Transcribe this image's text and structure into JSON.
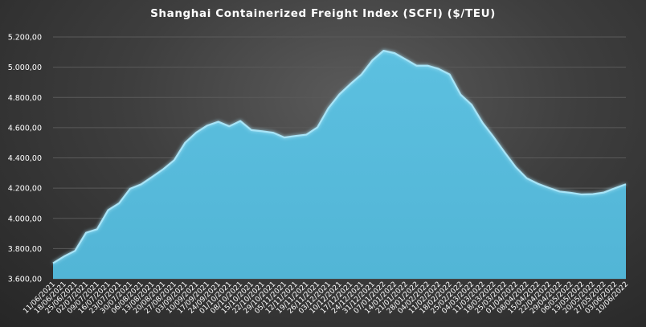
{
  "chart_data": {
    "type": "area",
    "title": "Shanghai Containerized Freight Index  (SCFI)  ($/TEU)",
    "xlabel": "",
    "ylabel": "",
    "ylim": [
      3600,
      5200
    ],
    "yticks": [
      3600,
      3800,
      4000,
      4200,
      4400,
      4600,
      4800,
      5000,
      5200
    ],
    "ytick_labels": [
      "3.600,00",
      "3.800,00",
      "4.000,00",
      "4.200,00",
      "4.400,00",
      "4.600,00",
      "4.800,00",
      "5.000,00",
      "5.200,00"
    ],
    "grid": "horizontal",
    "legend": "none",
    "colors": {
      "fill": "#52b5d6",
      "line": "#a8e4f7",
      "grid": "#5a5a5a",
      "text": "#ffffff"
    },
    "x": [
      "11/06/2021",
      "18/06/2021",
      "25/06/2021",
      "02/07/2021",
      "09/07/2021",
      "16/07/2021",
      "23/07/2021",
      "30/07/2021",
      "06/08/2021",
      "13/08/2021",
      "20/08/2021",
      "27/08/2021",
      "03/09/2021",
      "10/09/2021",
      "17/09/2021",
      "24/09/2021",
      "01/10/2021",
      "08/10/2021",
      "15/10/2021",
      "22/10/2021",
      "29/10/2021",
      "05/11/2021",
      "12/11/2021",
      "19/11/2021",
      "26/11/2021",
      "03/12/2021",
      "10/12/2021",
      "17/12/2021",
      "24/12/2021",
      "31/12/2021",
      "07/01/2022",
      "14/01/2022",
      "21/01/2022",
      "28/01/2022",
      "04/02/2022",
      "11/02/2022",
      "18/02/2022",
      "25/02/2022",
      "04/03/2022",
      "11/03/2022",
      "18/03/2022",
      "25/03/2022",
      "01/04/2022",
      "08/04/2022",
      "15/04/2022",
      "22/04/2022",
      "29/04/2022",
      "06/05/2022",
      "13/05/2022",
      "20/05/2022",
      "27/05/2022",
      "03/06/2022",
      "10/06/2022"
    ],
    "values": [
      3703,
      3748,
      3785,
      3905,
      3928,
      4054,
      4100,
      4196,
      4225,
      4274,
      4325,
      4385,
      4501,
      4568,
      4614,
      4639,
      4609,
      4644,
      4584,
      4576,
      4566,
      4535,
      4545,
      4554,
      4602,
      4729,
      4821,
      4889,
      4952,
      5046,
      5109,
      5093,
      5052,
      5010,
      5010,
      4989,
      4952,
      4818,
      4751,
      4631,
      4537,
      4436,
      4339,
      4265,
      4229,
      4202,
      4177,
      4169,
      4158,
      4160,
      4171,
      4199,
      4226
    ]
  }
}
